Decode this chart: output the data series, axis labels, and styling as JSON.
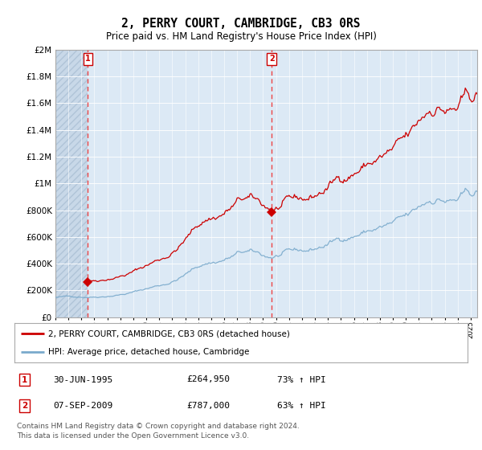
{
  "title": "2, PERRY COURT, CAMBRIDGE, CB3 0RS",
  "subtitle": "Price paid vs. HM Land Registry's House Price Index (HPI)",
  "ylim": [
    0,
    2000000
  ],
  "yticks": [
    0,
    200000,
    400000,
    600000,
    800000,
    1000000,
    1200000,
    1400000,
    1600000,
    1800000,
    2000000
  ],
  "ytick_labels": [
    "£0",
    "£200K",
    "£400K",
    "£600K",
    "£800K",
    "£1M",
    "£1.2M",
    "£1.4M",
    "£1.6M",
    "£1.8M",
    "£2M"
  ],
  "background_color": "#dce9f5",
  "hatch_color": "#c8d8e8",
  "grid_color": "#ffffff",
  "sale1_year": 1995.5,
  "sale1_price": 264950,
  "sale2_year": 2009.67,
  "sale2_price": 787000,
  "legend_entry1": "2, PERRY COURT, CAMBRIDGE, CB3 0RS (detached house)",
  "legend_entry2": "HPI: Average price, detached house, Cambridge",
  "footer": "Contains HM Land Registry data © Crown copyright and database right 2024.\nThis data is licensed under the Open Government Licence v3.0.",
  "line_color_red": "#cc0000",
  "line_color_blue": "#7aaacc",
  "xmin": 1993.0,
  "xmax": 2025.5
}
